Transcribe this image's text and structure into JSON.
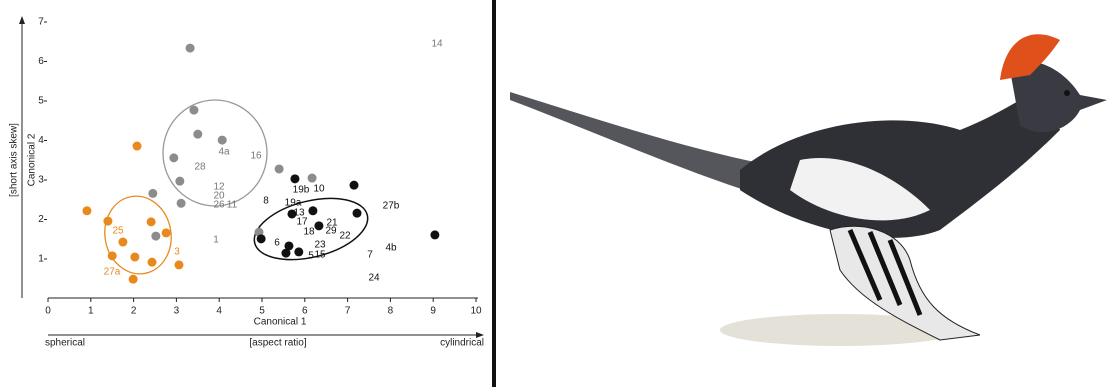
{
  "chart_data": {
    "type": "scatter",
    "x_label": "Canonical 1",
    "y_label": "Canonical 2",
    "x_axis_left": "spherical",
    "x_axis_middle": "[aspect ratio]",
    "x_axis_right": "cylindrical",
    "y_axis_meaning": "[short axis skew]",
    "xlim": [
      0,
      10
    ],
    "ylim": [
      0,
      7
    ],
    "xticks": [
      0,
      1,
      2,
      3,
      4,
      5,
      6,
      7,
      8,
      9,
      10
    ],
    "yticks": [
      1,
      2,
      3,
      4,
      5,
      6,
      7
    ],
    "series": [
      {
        "color": "#8c8c8c",
        "x": [
          3.32,
          3.41,
          3.5,
          4.07,
          2.94,
          3.08,
          2.45,
          3.11,
          5.4,
          6.17,
          4.93,
          2.52
        ],
        "y": [
          6.34,
          4.77,
          4.16,
          4.01,
          3.56,
          2.97,
          2.66,
          2.41,
          3.28,
          3.05,
          1.68,
          1.58
        ]
      },
      {
        "color": "#e8891e",
        "x": [
          0.91,
          2.08,
          1.4,
          1.75,
          2.41,
          1.5,
          2.03,
          2.43,
          2.76,
          3.06,
          1.99
        ],
        "y": [
          2.22,
          3.86,
          1.96,
          1.43,
          1.94,
          1.08,
          1.05,
          0.92,
          1.66,
          0.85,
          0.49
        ]
      },
      {
        "color": "#111111",
        "x": [
          5.77,
          7.15,
          6.19,
          7.22,
          5.7,
          4.98,
          5.63,
          5.56,
          5.86,
          6.33,
          9.04
        ],
        "y": [
          3.03,
          2.87,
          2.22,
          2.16,
          2.14,
          1.51,
          1.33,
          1.15,
          1.18,
          1.84,
          1.61
        ]
      }
    ],
    "annotations": [
      "14",
      "28",
      "4a",
      "16",
      "12",
      "20",
      "26",
      "11",
      "1",
      "8",
      "19b",
      "10",
      "19a",
      "13",
      "17",
      "21",
      "18",
      "29",
      "22",
      "6",
      "23",
      "5",
      "15",
      "7",
      "4b",
      "24",
      "27b",
      "25",
      "3",
      "27a"
    ]
  }
}
